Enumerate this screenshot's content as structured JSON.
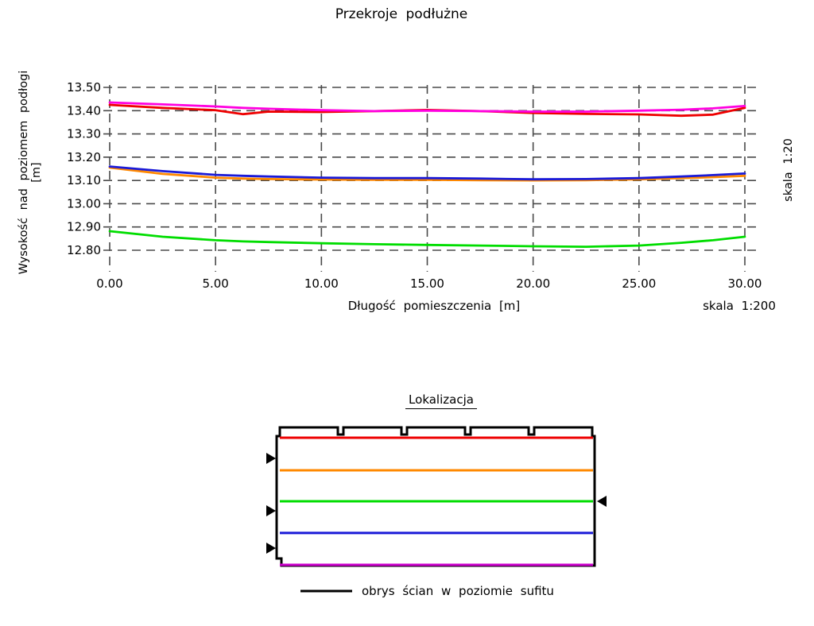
{
  "page": {
    "title": "Przekroje podłużne",
    "background": "#ffffff"
  },
  "chart": {
    "ylabel": "Wysokość nad poziomem podłogi [m]",
    "xlabel": "Długość pomieszczenia [m]",
    "scale_vertical": "skala 1:20",
    "scale_horizontal": "skala 1:200"
  },
  "chart_data": {
    "type": "line",
    "title": "Przekroje podłużne",
    "xlabel": "Długość pomieszczenia [m]",
    "ylabel": "Wysokość nad poziomem podłogi [m]",
    "xlim": [
      0,
      30
    ],
    "ylim": [
      12.8,
      13.5
    ],
    "x_ticks": [
      "0.00",
      "5.00",
      "10.00",
      "15.00",
      "20.00",
      "25.00",
      "30.00"
    ],
    "y_ticks": [
      "13.50",
      "13.40",
      "13.30",
      "13.20",
      "13.10",
      "13.00",
      "12.90",
      "12.80"
    ],
    "grid": "dashed-both-axes",
    "grid_color": "#4a4a4a",
    "x": [
      0,
      2.5,
      5,
      6.3,
      7.5,
      10,
      12.5,
      15,
      17.5,
      20,
      22.5,
      25,
      27,
      28.5,
      30
    ],
    "series": [
      {
        "name": "orange-section",
        "color": "#ff8800",
        "values": [
          13.155,
          13.128,
          13.112,
          13.108,
          13.106,
          13.104,
          13.103,
          13.103,
          13.101,
          13.1,
          13.101,
          13.105,
          13.11,
          13.114,
          13.12
        ]
      },
      {
        "name": "blue-section",
        "color": "#1a1ad8",
        "values": [
          13.16,
          13.14,
          13.124,
          13.12,
          13.117,
          13.112,
          13.11,
          13.11,
          13.108,
          13.105,
          13.106,
          13.11,
          13.117,
          13.123,
          13.13
        ]
      },
      {
        "name": "green-section",
        "color": "#00dd00",
        "values": [
          12.882,
          12.858,
          12.843,
          12.838,
          12.835,
          12.83,
          12.826,
          12.823,
          12.82,
          12.817,
          12.815,
          12.82,
          12.832,
          12.843,
          12.858
        ]
      },
      {
        "name": "red-section",
        "color": "#ee0000",
        "values": [
          13.425,
          13.412,
          13.402,
          13.385,
          13.396,
          13.394,
          13.398,
          13.403,
          13.398,
          13.39,
          13.386,
          13.384,
          13.378,
          13.383,
          13.412
        ]
      },
      {
        "name": "magenta-section",
        "color": "#ff00e0",
        "values": [
          13.435,
          13.427,
          13.418,
          13.412,
          13.408,
          13.402,
          13.398,
          13.4,
          13.398,
          13.396,
          13.396,
          13.4,
          13.404,
          13.41,
          13.42
        ]
      }
    ]
  },
  "lokalizacja": {
    "title": "Lokalizacja",
    "legend_label": "obrys ścian w poziomie sufitu",
    "outline_color": "#000000",
    "section_lines": [
      {
        "name": "red-section",
        "color": "#ee0000",
        "pos": 0.012
      },
      {
        "name": "orange-section",
        "color": "#ff8800",
        "pos": 0.264
      },
      {
        "name": "green-section",
        "color": "#00dd00",
        "pos": 0.503
      },
      {
        "name": "blue-section",
        "color": "#1a1ad8",
        "pos": 0.748
      },
      {
        "name": "magenta-section",
        "color": "#cc00cc",
        "pos": 0.994
      }
    ],
    "left_markers_pos": [
      0.172,
      0.577,
      0.865
    ],
    "right_markers_pos": [
      0.503
    ]
  }
}
